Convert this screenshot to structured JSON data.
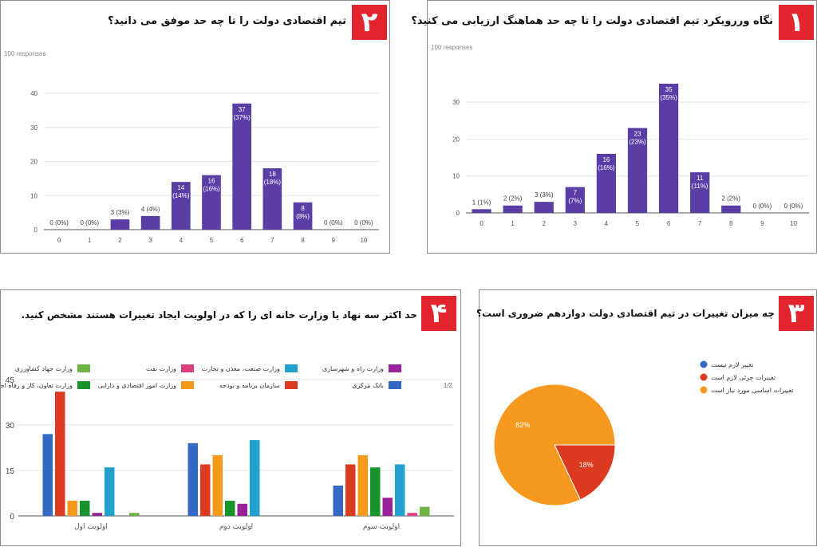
{
  "panels": [
    {
      "number": "۱",
      "title": "نگاه وررویکرد تیم اقتصادی دولت را تا چه حد هماهنگ ارزیابی می کنید؟",
      "responses": "100 responses"
    },
    {
      "number": "۲",
      "title": "تیم اقتصادی دولت را تا چه حد موفق می دانید؟",
      "responses": "100 responses"
    },
    {
      "number": "۳",
      "title": "چه میزان تغییرات در تیم اقتصادی دولت دوازدهم ضروری است؟"
    },
    {
      "number": "۴",
      "title": "حد اکثر سه نهاد یا وزارت خانه ای را که در اولویت ایجاد تغییرات هستند مشخص کنید."
    }
  ],
  "chart_data": [
    {
      "type": "bar",
      "categories": [
        "0",
        "1",
        "2",
        "3",
        "4",
        "5",
        "6",
        "7",
        "8",
        "9",
        "10"
      ],
      "values": [
        1,
        2,
        3,
        7,
        16,
        23,
        35,
        11,
        2,
        0,
        0
      ],
      "data_labels": [
        "1 (1%)",
        "2 (2%)",
        "3 (3%)",
        "7 (7%)",
        "16 (16%)",
        "23 (23%)",
        "35 (35%)",
        "11 (11%)",
        "2 (2%)",
        "0 (0%)",
        "0 (0%)"
      ],
      "yticks": [
        "0",
        "10",
        "20",
        "30"
      ],
      "ylim": [
        0,
        35
      ],
      "color": "#5a3ea6"
    },
    {
      "type": "bar",
      "categories": [
        "0",
        "1",
        "2",
        "3",
        "4",
        "5",
        "6",
        "7",
        "8",
        "9",
        "10"
      ],
      "values": [
        0,
        0,
        3,
        4,
        14,
        16,
        37,
        18,
        8,
        0,
        0
      ],
      "data_labels": [
        "0 (0%)",
        "0 (0%)",
        "3 (3%)",
        "4 (4%)",
        "14 (14%)",
        "16 (16%)",
        "37 (37%)",
        "18 (18%)",
        "8 (8%)",
        "0 (0%)",
        "0 (0%)"
      ],
      "yticks": [
        "0",
        "10",
        "20",
        "30",
        "40"
      ],
      "ylim": [
        0,
        40
      ],
      "color": "#5a3ea6"
    },
    {
      "type": "pie",
      "slices": [
        {
          "label": "تغییر لازم نیست",
          "value": 0,
          "color": "#3267c6"
        },
        {
          "label": "تغییرات جزئی لازم است",
          "value": 18,
          "color": "#dc3a1f"
        },
        {
          "label": "تغییرات اساسی مورد نیاز است",
          "value": 82,
          "color": "#f7991e"
        }
      ],
      "slice_labels": [
        "18%",
        "82%"
      ]
    },
    {
      "type": "bar",
      "categories": [
        "اولویت اول",
        "اولویت دوم",
        "اولویت سوم"
      ],
      "yticks": [
        "0",
        "15",
        "30",
        "45"
      ],
      "ylim": [
        0,
        45
      ],
      "series": [
        {
          "name": "بانک مرکزی",
          "color": "#3468c4",
          "values": [
            27,
            24,
            10
          ]
        },
        {
          "name": "سازمان برنامه و بودجه",
          "color": "#dd3b1f",
          "values": [
            41,
            17,
            17
          ]
        },
        {
          "name": "وزارت امور اقتصادی و دارایی",
          "color": "#f79a1c",
          "values": [
            5,
            20,
            20
          ]
        },
        {
          "name": "وزارت تعاون، کار و رفاه اجتماعی",
          "color": "#16952d",
          "values": [
            5,
            5,
            16
          ]
        },
        {
          "name": "وزارت راه و شهرسازی",
          "color": "#98229a",
          "values": [
            1,
            4,
            6
          ]
        },
        {
          "name": "وزارت صنعت، معدن و تجارت",
          "color": "#22a1cf",
          "values": [
            16,
            25,
            17
          ]
        },
        {
          "name": "وزارت نفت",
          "color": "#dc3f7e",
          "values": [
            0,
            0,
            1
          ]
        },
        {
          "name": "وزارت جهاد کشاورزی",
          "color": "#6fb440",
          "values": [
            1,
            0,
            3
          ]
        }
      ],
      "legend_page": "1/2"
    }
  ]
}
